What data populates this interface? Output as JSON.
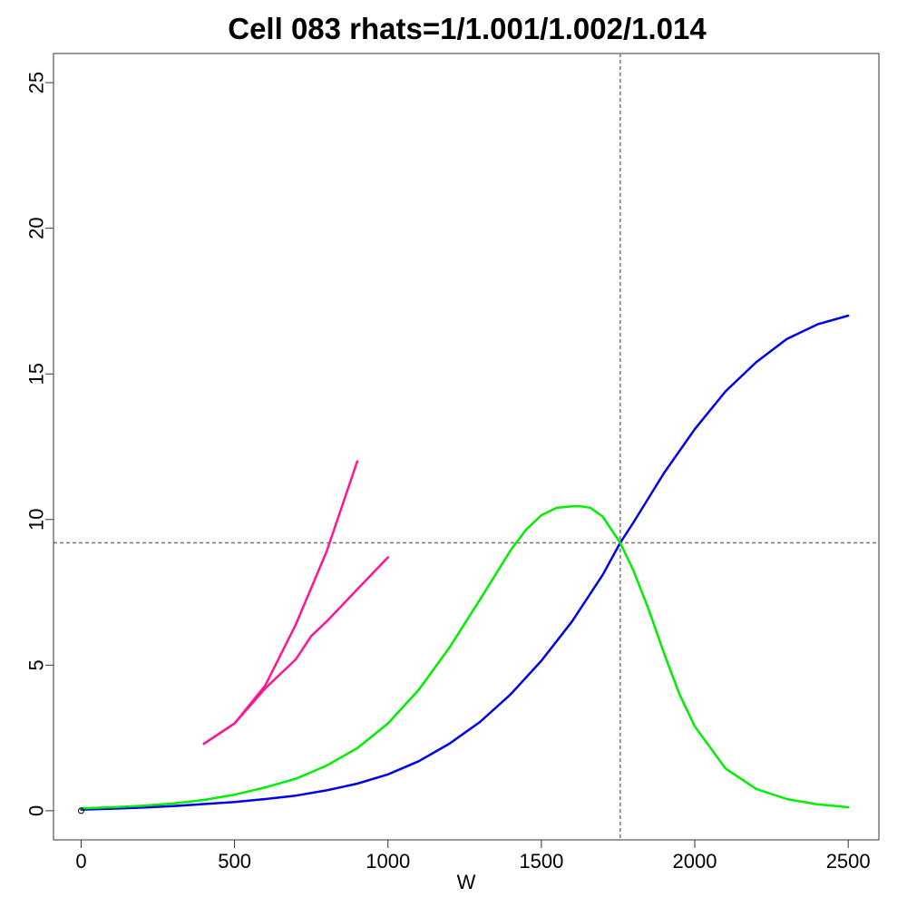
{
  "chart_data": {
    "type": "line",
    "title": "Cell 083 rhats=1/1.001/1.002/1.014",
    "xlabel": "W",
    "ylabel": "",
    "xlim": [
      -90,
      2600
    ],
    "ylim": [
      -1,
      26
    ],
    "x_ticks": [
      0,
      500,
      1000,
      1500,
      2000,
      2500
    ],
    "x_tick_labels": [
      "0",
      "500",
      "1000",
      "1500",
      "2000",
      "2500"
    ],
    "y_ticks": [
      0,
      5,
      10,
      15,
      20,
      25
    ],
    "y_tick_labels": [
      "0",
      "5",
      "10",
      "15",
      "20",
      "25"
    ],
    "grid": false,
    "reference_lines": {
      "vertical_x": 1757,
      "horizontal_y": 9.2,
      "style": "dashed",
      "color": "#777777"
    },
    "series": [
      {
        "color": "#0000ee",
        "x": [
          0,
          100,
          200,
          300,
          400,
          500,
          600,
          700,
          800,
          900,
          1000,
          1100,
          1200,
          1300,
          1400,
          1500,
          1600,
          1700,
          1757,
          1800,
          1900,
          2000,
          2100,
          2200,
          2300,
          2400,
          2500
        ],
        "y": [
          0.04,
          0.07,
          0.11,
          0.16,
          0.23,
          0.3,
          0.4,
          0.52,
          0.7,
          0.93,
          1.25,
          1.7,
          2.3,
          3.05,
          4.0,
          5.15,
          6.5,
          8.1,
          9.2,
          9.9,
          11.6,
          13.1,
          14.4,
          15.4,
          16.2,
          16.7,
          17.0
        ]
      },
      {
        "color": "#00ee00",
        "x": [
          0,
          100,
          200,
          300,
          400,
          500,
          600,
          700,
          800,
          900,
          1000,
          1100,
          1200,
          1300,
          1400,
          1450,
          1500,
          1550,
          1600,
          1630,
          1660,
          1700,
          1757,
          1800,
          1850,
          1900,
          1950,
          2000,
          2100,
          2200,
          2300,
          2400,
          2500
        ],
        "y": [
          0.08,
          0.12,
          0.17,
          0.25,
          0.37,
          0.55,
          0.8,
          1.1,
          1.55,
          2.15,
          3.0,
          4.15,
          5.6,
          7.25,
          8.95,
          9.65,
          10.15,
          10.4,
          10.45,
          10.45,
          10.4,
          10.1,
          9.2,
          8.25,
          6.9,
          5.4,
          4.0,
          2.9,
          1.45,
          0.75,
          0.4,
          0.22,
          0.12
        ]
      },
      {
        "color": "#ff1493",
        "x": [
          400,
          500,
          600,
          700,
          800,
          900
        ],
        "y": [
          2.3,
          3.0,
          4.3,
          6.4,
          8.9,
          12.0
        ]
      },
      {
        "color": "#ff1493",
        "x": [
          400,
          500,
          600,
          700,
          750,
          800,
          900,
          1000
        ],
        "y": [
          2.3,
          3.0,
          4.2,
          5.2,
          6.0,
          6.5,
          7.6,
          8.7
        ]
      }
    ],
    "points": [
      {
        "x": 0,
        "y": 0,
        "marker": "open-circle",
        "color": "#000000"
      }
    ]
  }
}
